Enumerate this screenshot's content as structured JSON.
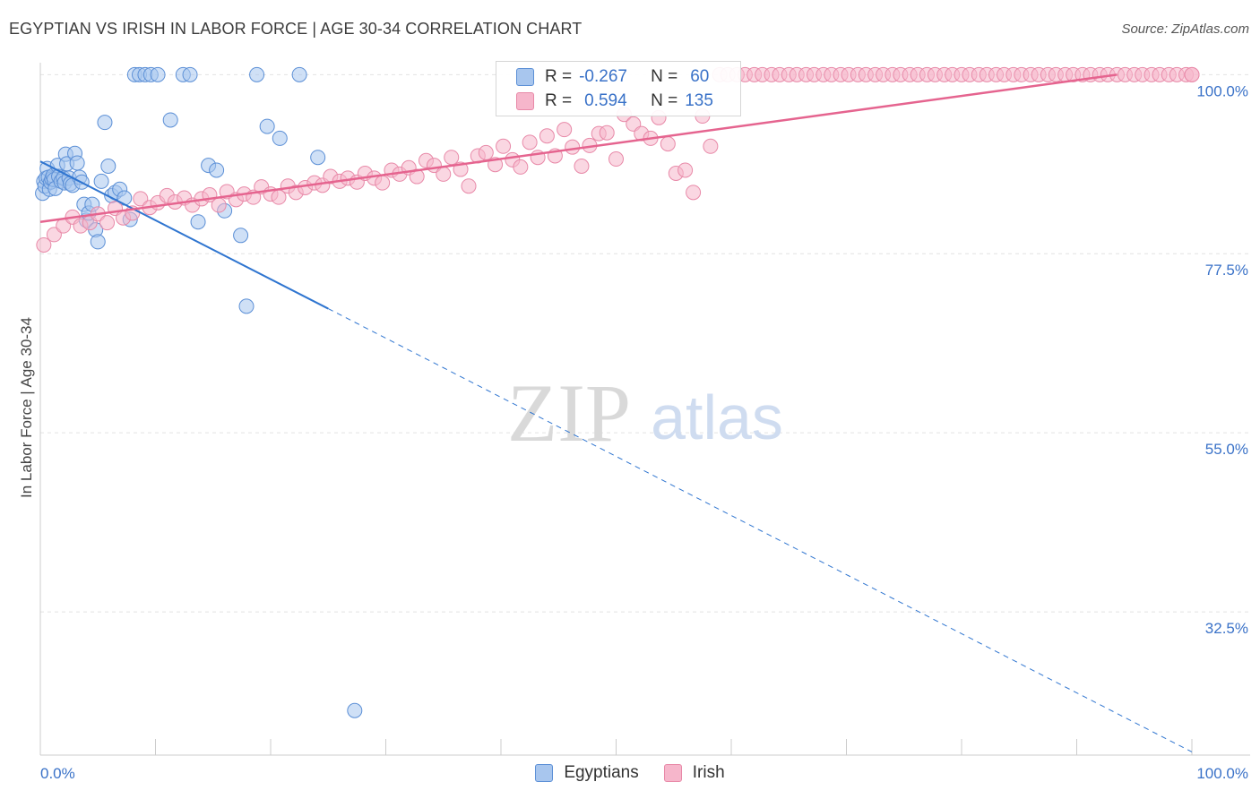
{
  "title": "EGYPTIAN VS IRISH IN LABOR FORCE | AGE 30-34 CORRELATION CHART",
  "source": "Source: ZipAtlas.com",
  "watermark": {
    "zip": "ZIP",
    "atlas": "atlas"
  },
  "colors": {
    "egyptians_fill": "#a8c6ee",
    "egyptians_stroke": "#5b8fd6",
    "egyptians_line": "#2f75d0",
    "irish_fill": "#f6b6cb",
    "irish_stroke": "#e889a8",
    "irish_line": "#e5648f",
    "axis_label": "#3a72c8",
    "grid": "#e2e2e2"
  },
  "legend_top": {
    "rows": [
      {
        "r_label": "R =",
        "r_value": "-0.267",
        "n_label": "N =",
        "n_value": "60"
      },
      {
        "r_label": "R =",
        "r_value": "0.594",
        "n_label": "N =",
        "n_value": "135"
      }
    ]
  },
  "legend_bottom": {
    "egyptians": "Egyptians",
    "irish": "Irish"
  },
  "chart_data": {
    "type": "scatter",
    "xlabel": "",
    "ylabel": "In Labor Force | Age 30-34",
    "xlim": [
      0,
      100
    ],
    "ylim": [
      14.5,
      101.5
    ],
    "x_tick_labels": [
      "0.0%",
      "100.0%"
    ],
    "y_ticks": [
      100.0,
      77.5,
      55.0,
      32.5
    ],
    "y_tick_labels": [
      "100.0%",
      "77.5%",
      "55.0%",
      "32.5%"
    ],
    "legend": "bottom-center",
    "series": [
      {
        "name": "Egyptians",
        "trend": {
          "x": [
            0,
            25
          ],
          "y": [
            89.1,
            70.6
          ],
          "dashed_to": [
            100,
            14.9
          ]
        },
        "points": [
          [
            0.2,
            85.1
          ],
          [
            0.3,
            86.6
          ],
          [
            0.4,
            86.0
          ],
          [
            0.5,
            87.0
          ],
          [
            0.6,
            88.2
          ],
          [
            0.7,
            87.1
          ],
          [
            0.8,
            85.6
          ],
          [
            0.9,
            86.5
          ],
          [
            1.0,
            86.9
          ],
          [
            1.1,
            87.3
          ],
          [
            1.2,
            86.8
          ],
          [
            1.3,
            85.7
          ],
          [
            1.5,
            88.6
          ],
          [
            1.6,
            87.2
          ],
          [
            1.8,
            86.6
          ],
          [
            2.0,
            87.0
          ],
          [
            2.1,
            86.4
          ],
          [
            2.2,
            90.0
          ],
          [
            2.3,
            88.8
          ],
          [
            2.5,
            87.0
          ],
          [
            2.6,
            86.3
          ],
          [
            2.8,
            86.1
          ],
          [
            3.0,
            90.1
          ],
          [
            3.2,
            88.9
          ],
          [
            3.4,
            87.1
          ],
          [
            3.6,
            86.5
          ],
          [
            3.8,
            83.7
          ],
          [
            4.0,
            81.7
          ],
          [
            4.2,
            82.6
          ],
          [
            4.5,
            83.7
          ],
          [
            4.8,
            80.5
          ],
          [
            5.0,
            79.0
          ],
          [
            5.3,
            86.6
          ],
          [
            5.6,
            94.0
          ],
          [
            5.9,
            88.5
          ],
          [
            6.2,
            84.8
          ],
          [
            6.5,
            85.2
          ],
          [
            6.9,
            85.6
          ],
          [
            7.3,
            84.5
          ],
          [
            7.8,
            81.8
          ],
          [
            8.2,
            100.0
          ],
          [
            8.6,
            100.0
          ],
          [
            9.1,
            100.0
          ],
          [
            9.6,
            100.0
          ],
          [
            10.2,
            100.0
          ],
          [
            11.3,
            94.3
          ],
          [
            12.4,
            100.0
          ],
          [
            13.0,
            100.0
          ],
          [
            13.7,
            81.5
          ],
          [
            14.6,
            88.6
          ],
          [
            15.3,
            88.0
          ],
          [
            16.0,
            82.9
          ],
          [
            17.4,
            79.8
          ],
          [
            17.9,
            70.9
          ],
          [
            18.8,
            100.0
          ],
          [
            19.7,
            93.5
          ],
          [
            20.8,
            92.0
          ],
          [
            22.5,
            100.0
          ],
          [
            24.1,
            89.6
          ],
          [
            27.3,
            20.1
          ]
        ]
      },
      {
        "name": "Irish",
        "trend": {
          "x": [
            0,
            93.5
          ],
          "y": [
            81.5,
            100.0
          ]
        },
        "points": [
          [
            0.3,
            78.6
          ],
          [
            1.2,
            79.9
          ],
          [
            2.0,
            81.0
          ],
          [
            2.8,
            82.1
          ],
          [
            3.5,
            81.0
          ],
          [
            4.3,
            81.4
          ],
          [
            5.0,
            82.5
          ],
          [
            5.8,
            81.4
          ],
          [
            6.5,
            83.2
          ],
          [
            7.2,
            82.0
          ],
          [
            8.0,
            82.6
          ],
          [
            8.7,
            84.4
          ],
          [
            9.5,
            83.3
          ],
          [
            10.2,
            83.9
          ],
          [
            11.0,
            84.8
          ],
          [
            11.7,
            84.0
          ],
          [
            12.5,
            84.5
          ],
          [
            13.2,
            83.6
          ],
          [
            14.0,
            84.4
          ],
          [
            14.7,
            84.9
          ],
          [
            15.5,
            83.6
          ],
          [
            16.2,
            85.3
          ],
          [
            17.0,
            84.3
          ],
          [
            17.7,
            85.0
          ],
          [
            18.5,
            84.6
          ],
          [
            19.2,
            85.9
          ],
          [
            20.0,
            85.0
          ],
          [
            20.7,
            84.6
          ],
          [
            21.5,
            86.0
          ],
          [
            22.2,
            85.2
          ],
          [
            23.0,
            85.8
          ],
          [
            23.8,
            86.4
          ],
          [
            24.5,
            86.1
          ],
          [
            25.2,
            87.2
          ],
          [
            26.0,
            86.6
          ],
          [
            26.7,
            87.0
          ],
          [
            27.5,
            86.5
          ],
          [
            28.2,
            87.6
          ],
          [
            29.0,
            87.0
          ],
          [
            29.7,
            86.4
          ],
          [
            30.5,
            88.0
          ],
          [
            31.2,
            87.5
          ],
          [
            32.0,
            88.3
          ],
          [
            32.7,
            87.2
          ],
          [
            33.5,
            89.2
          ],
          [
            34.2,
            88.6
          ],
          [
            35.0,
            87.5
          ],
          [
            35.7,
            89.6
          ],
          [
            36.5,
            88.1
          ],
          [
            37.2,
            86.0
          ],
          [
            38.0,
            89.8
          ],
          [
            38.7,
            90.2
          ],
          [
            39.5,
            88.7
          ],
          [
            40.2,
            91.0
          ],
          [
            41.0,
            89.3
          ],
          [
            41.7,
            88.4
          ],
          [
            42.5,
            91.5
          ],
          [
            43.2,
            89.6
          ],
          [
            44.0,
            92.3
          ],
          [
            44.7,
            89.8
          ],
          [
            45.5,
            93.1
          ],
          [
            46.2,
            90.9
          ],
          [
            47.0,
            88.5
          ],
          [
            47.7,
            91.1
          ],
          [
            48.5,
            92.6
          ],
          [
            49.2,
            92.7
          ],
          [
            50.0,
            89.4
          ],
          [
            50.7,
            95.0
          ],
          [
            51.5,
            93.8
          ],
          [
            52.2,
            92.6
          ],
          [
            53.0,
            92.0
          ],
          [
            53.7,
            94.6
          ],
          [
            54.5,
            91.3
          ],
          [
            55.2,
            87.6
          ],
          [
            56.0,
            88.0
          ],
          [
            56.7,
            85.2
          ],
          [
            57.5,
            94.8
          ],
          [
            58.2,
            91.0
          ],
          [
            59.0,
            100.0
          ],
          [
            59.7,
            100.0
          ],
          [
            60.5,
            100.0
          ],
          [
            61.2,
            100.0
          ],
          [
            62.0,
            100.0
          ],
          [
            62.7,
            100.0
          ],
          [
            63.5,
            100.0
          ],
          [
            64.2,
            100.0
          ],
          [
            65.0,
            100.0
          ],
          [
            65.7,
            100.0
          ],
          [
            66.5,
            100.0
          ],
          [
            67.2,
            100.0
          ],
          [
            68.0,
            100.0
          ],
          [
            68.7,
            100.0
          ],
          [
            69.5,
            100.0
          ],
          [
            70.2,
            100.0
          ],
          [
            71.0,
            100.0
          ],
          [
            71.7,
            100.0
          ],
          [
            72.5,
            100.0
          ],
          [
            73.2,
            100.0
          ],
          [
            74.0,
            100.0
          ],
          [
            74.7,
            100.0
          ],
          [
            75.5,
            100.0
          ],
          [
            76.2,
            100.0
          ],
          [
            77.0,
            100.0
          ],
          [
            77.7,
            100.0
          ],
          [
            78.5,
            100.0
          ],
          [
            79.2,
            100.0
          ],
          [
            80.0,
            100.0
          ],
          [
            80.7,
            100.0
          ],
          [
            81.5,
            100.0
          ],
          [
            82.2,
            100.0
          ],
          [
            83.0,
            100.0
          ],
          [
            83.7,
            100.0
          ],
          [
            84.5,
            100.0
          ],
          [
            85.2,
            100.0
          ],
          [
            86.0,
            100.0
          ],
          [
            86.7,
            100.0
          ],
          [
            87.5,
            100.0
          ],
          [
            88.2,
            100.0
          ],
          [
            89.0,
            100.0
          ],
          [
            89.7,
            100.0
          ],
          [
            90.5,
            100.0
          ],
          [
            91.2,
            100.0
          ],
          [
            92.0,
            100.0
          ],
          [
            92.7,
            100.0
          ],
          [
            93.5,
            100.0
          ],
          [
            94.2,
            100.0
          ],
          [
            95.0,
            100.0
          ],
          [
            95.7,
            100.0
          ],
          [
            96.5,
            100.0
          ],
          [
            97.2,
            100.0
          ],
          [
            98.0,
            100.0
          ],
          [
            98.7,
            100.0
          ],
          [
            99.5,
            100.0
          ],
          [
            100.0,
            100.0
          ],
          [
            100.0,
            100.0
          ]
        ]
      }
    ]
  }
}
